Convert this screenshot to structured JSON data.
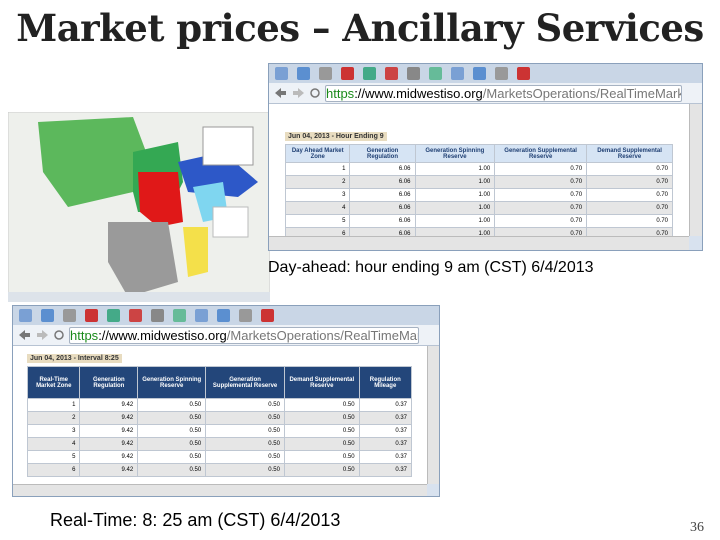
{
  "title": "Market prices – Ancillary Services",
  "top_browser": {
    "url": [
      "https",
      "://www.midwestiso.org",
      "/MarketsOperations/RealTimeMarketDa"
    ],
    "heading": "Jun 04, 2013 - Hour Ending 9",
    "table": {
      "headers": [
        "Day Ahead Market Zone",
        "Generation Regulation",
        "Generation Spinning Reserve",
        "Generation Supplemental Reserve",
        "Demand Supplemental Reserve"
      ],
      "rows": [
        [
          "1",
          "6.06",
          "1.00",
          "0.70",
          "0.70"
        ],
        [
          "2",
          "6.06",
          "1.00",
          "0.70",
          "0.70"
        ],
        [
          "3",
          "6.06",
          "1.00",
          "0.70",
          "0.70"
        ],
        [
          "4",
          "6.06",
          "1.00",
          "0.70",
          "0.70"
        ],
        [
          "5",
          "6.06",
          "1.00",
          "0.70",
          "0.70"
        ],
        [
          "6",
          "6.06",
          "1.00",
          "0.70",
          "0.70"
        ]
      ]
    },
    "caption": "Day-ahead: hour ending 9 am (CST) 6/4/2013"
  },
  "bottom_browser": {
    "url": [
      "https",
      "://www.midwestiso.org",
      "/MarketsOperations/RealTimeMarketDa"
    ],
    "heading": "Jun 04, 2013 - Interval 8:25",
    "table": {
      "headers": [
        "Real-Time Market Zone",
        "Generation Regulation",
        "Generation Spinning Reserve",
        "Generation Supplemental Reserve",
        "Demand Supplemental Reserve",
        "Regulation Mileage"
      ],
      "rows": [
        [
          "1",
          "9.42",
          "0.50",
          "0.50",
          "0.50",
          "0.37"
        ],
        [
          "2",
          "9.42",
          "0.50",
          "0.50",
          "0.50",
          "0.37"
        ],
        [
          "3",
          "9.42",
          "0.50",
          "0.50",
          "0.50",
          "0.37"
        ],
        [
          "4",
          "9.42",
          "0.50",
          "0.50",
          "0.50",
          "0.37"
        ],
        [
          "5",
          "9.42",
          "0.50",
          "0.50",
          "0.50",
          "0.37"
        ],
        [
          "6",
          "9.42",
          "0.50",
          "0.50",
          "0.50",
          "0.37"
        ]
      ]
    },
    "caption": "Real-Time: 8: 25 am (CST) 6/4/2013"
  },
  "page_number": "36"
}
